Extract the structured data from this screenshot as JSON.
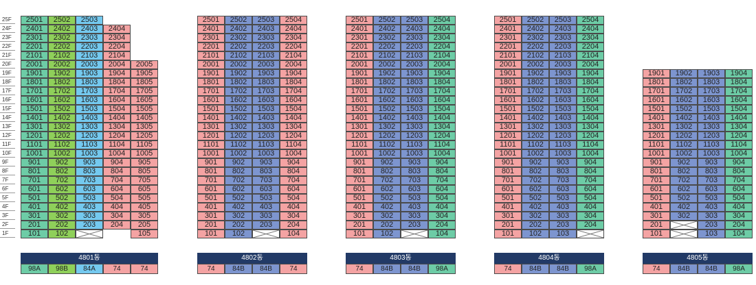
{
  "colors": {
    "74": "#f4a3a3",
    "84A": "#74c9ef",
    "84B": "#7d95cf",
    "98A": "#6dcca6",
    "98B": "#8fd05a",
    "bar": "#223a66"
  },
  "floors": [
    "25F",
    "24F",
    "23F",
    "22F",
    "21F",
    "20F",
    "19F",
    "18F",
    "17F",
    "16F",
    "15F",
    "14F",
    "13F",
    "12F",
    "11F",
    "10F",
    "9F",
    "8F",
    "7F",
    "6F",
    "5F",
    "4F",
    "3F",
    "2F",
    "1F"
  ],
  "buildings": [
    {
      "name": "4801동",
      "columns": [
        {
          "type": "98A",
          "top": 25,
          "bottom": 1,
          "line": 1,
          "empty": []
        },
        {
          "type": "98B",
          "top": 25,
          "bottom": 1,
          "line": 2,
          "empty": []
        },
        {
          "type": "84A",
          "top": 25,
          "bottom": 2,
          "line": 3,
          "empty": [
            1
          ]
        },
        {
          "type": "74",
          "top": 24,
          "bottom": 2,
          "line": 4,
          "empty": []
        },
        {
          "type": "74",
          "top": 20,
          "bottom": 1,
          "line": 5,
          "empty": []
        }
      ]
    },
    {
      "name": "4802동",
      "columns": [
        {
          "type": "74",
          "top": 25,
          "bottom": 1,
          "line": 1,
          "empty": []
        },
        {
          "type": "84B",
          "top": 25,
          "bottom": 1,
          "line": 2,
          "empty": []
        },
        {
          "type": "84B",
          "top": 25,
          "bottom": 2,
          "line": 3,
          "empty": [
            1
          ]
        },
        {
          "type": "74",
          "top": 25,
          "bottom": 1,
          "line": 4,
          "empty": []
        }
      ]
    },
    {
      "name": "4803동",
      "columns": [
        {
          "type": "74",
          "top": 25,
          "bottom": 1,
          "line": 1,
          "empty": []
        },
        {
          "type": "84B",
          "top": 25,
          "bottom": 1,
          "line": 2,
          "empty": []
        },
        {
          "type": "84B",
          "top": 25,
          "bottom": 2,
          "line": 3,
          "empty": [
            1
          ]
        },
        {
          "type": "98A",
          "top": 25,
          "bottom": 1,
          "line": 4,
          "empty": []
        }
      ]
    },
    {
      "name": "4804동",
      "columns": [
        {
          "type": "74",
          "top": 25,
          "bottom": 1,
          "line": 1,
          "empty": []
        },
        {
          "type": "84B",
          "top": 25,
          "bottom": 1,
          "line": 2,
          "empty": []
        },
        {
          "type": "84B",
          "top": 25,
          "bottom": 1,
          "line": 3,
          "empty": []
        },
        {
          "type": "98A",
          "top": 25,
          "bottom": 2,
          "line": 4,
          "empty": [
            1
          ]
        }
      ]
    },
    {
      "name": "4805동",
      "columns": [
        {
          "type": "74",
          "top": 19,
          "bottom": 1,
          "line": 1,
          "empty": []
        },
        {
          "type": "84B",
          "top": 19,
          "bottom": 3,
          "line": 2,
          "empty": [
            2,
            1
          ]
        },
        {
          "type": "84B",
          "top": 19,
          "bottom": 1,
          "line": 3,
          "empty": []
        },
        {
          "type": "98A",
          "top": 19,
          "bottom": 1,
          "line": 4,
          "empty": []
        }
      ]
    }
  ]
}
